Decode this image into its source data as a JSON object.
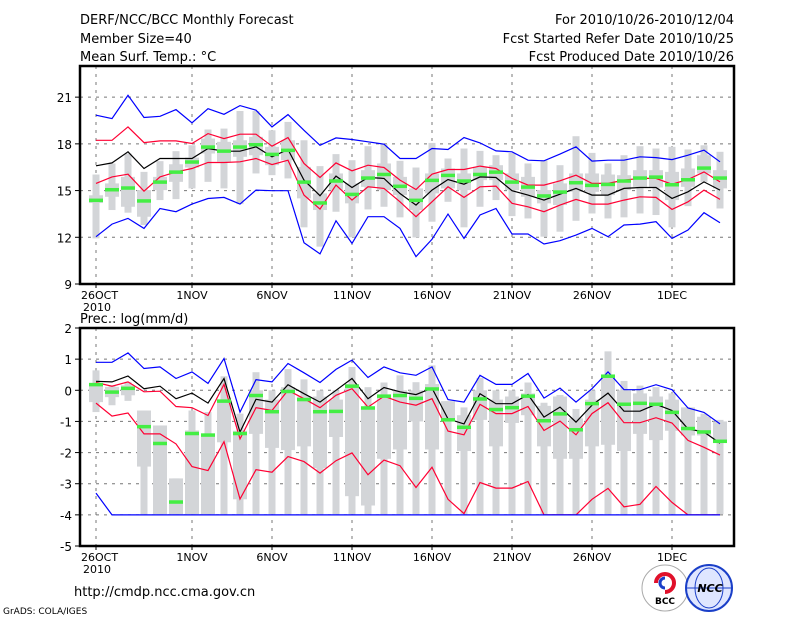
{
  "header": {
    "title": "DERF/NCC/BCC Monthly Forecast",
    "member_size": "Member Size=40",
    "variable": "Mean Surf. Temp.: °C",
    "period": "For 2010/10/26-2010/12/04",
    "start_date": "Fcst Started Refer Date 2010/10/25",
    "produced_date": "Fcst Produced Date 2010/10/26"
  },
  "footer": {
    "url": "http://cmdp.ncc.cma.gov.cn",
    "credit": "GrADS: COLA/IGES",
    "logo_bcc": "BCC",
    "logo_ncc": "NCC"
  },
  "colors": {
    "outer": "#0000ff",
    "inner": "#ff0033",
    "mean": "#000000",
    "marker": "#44ee44",
    "box": "#d3d5d8",
    "grid": "#777777"
  },
  "chart_data": [
    {
      "type": "box-line",
      "title": "Mean Surf. Temp.: °C",
      "ylabel": "°C",
      "ylim": [
        9,
        23
      ],
      "yticks": [
        9,
        12,
        15,
        18,
        21
      ],
      "xlim": [
        -1,
        39.875
      ],
      "xticks": [
        {
          "day": 0,
          "label": "26OCT"
        },
        {
          "day": 6,
          "label": "1NOV"
        },
        {
          "day": 11,
          "label": "6NOV"
        },
        {
          "day": 16,
          "label": "11NOV"
        },
        {
          "day": 21,
          "label": "16NOV"
        },
        {
          "day": 26,
          "label": "21NOV"
        },
        {
          "day": 31,
          "label": "26NOV"
        },
        {
          "day": 36,
          "label": "1DEC"
        }
      ],
      "year_label": "2010",
      "grid": true,
      "series": [
        {
          "name": "upper-outer",
          "color": "outer",
          "values": [
            19.84,
            19.62,
            21.12,
            19.69,
            19.77,
            20.2,
            19.35,
            20.26,
            19.9,
            20.46,
            20.16,
            19.09,
            19.88,
            18.87,
            17.91,
            18.38,
            18.28,
            18.13,
            17.98,
            17.06,
            17.06,
            17.7,
            17.64,
            18.41,
            18.06,
            17.55,
            17.49,
            16.95,
            16.91,
            17.34,
            17.81,
            16.89,
            16.95,
            16.95,
            17.17,
            17.12,
            16.99,
            17.27,
            17.59,
            16.85
          ]
        },
        {
          "name": "upper-inner",
          "color": "inner",
          "values": [
            18.23,
            18.23,
            19.09,
            18.08,
            18.19,
            18.19,
            18.02,
            18.66,
            18.34,
            18.62,
            18.62,
            17.85,
            18.4,
            16.74,
            15.84,
            16.78,
            16.27,
            16.63,
            16.48,
            15.67,
            15.07,
            16.05,
            16.35,
            16.35,
            16.57,
            16.42,
            15.78,
            15.35,
            15.35,
            15.63,
            15.99,
            15.46,
            15.46,
            15.67,
            15.78,
            15.78,
            15.41,
            15.71,
            16.2,
            15.56
          ]
        },
        {
          "name": "ensemble-mean",
          "color": "mean",
          "values": [
            16.59,
            16.78,
            17.49,
            16.42,
            17.06,
            17.06,
            17.06,
            17.7,
            17.53,
            17.53,
            17.81,
            17.17,
            17.64,
            15.67,
            14.67,
            15.93,
            15.2,
            15.84,
            15.78,
            14.81,
            14.07,
            15.03,
            15.71,
            15.41,
            15.88,
            15.84,
            14.99,
            14.71,
            14.39,
            14.77,
            15.14,
            14.71,
            14.71,
            15.14,
            15.2,
            15.2,
            14.5,
            14.92,
            15.56,
            15.03
          ]
        },
        {
          "name": "lower-inner",
          "color": "inner",
          "values": [
            15.46,
            15.88,
            16.05,
            14.96,
            15.88,
            16.2,
            16.42,
            16.8,
            16.8,
            16.85,
            17.06,
            16.67,
            16.95,
            14.71,
            13.81,
            15.35,
            14.39,
            15.24,
            15.14,
            14.28,
            13.32,
            14.28,
            15.24,
            14.56,
            15.24,
            15.29,
            14.18,
            13.96,
            13.64,
            14.07,
            14.43,
            14.13,
            14.13,
            14.39,
            14.6,
            14.56,
            13.79,
            14.28,
            15.03,
            14.43
          ]
        },
        {
          "name": "lower-outer",
          "color": "outer",
          "values": [
            12.04,
            12.85,
            13.21,
            12.57,
            13.85,
            13.64,
            14.13,
            14.49,
            14.56,
            14.13,
            15.03,
            14.99,
            14.99,
            11.65,
            10.93,
            13.06,
            11.61,
            13.32,
            13.32,
            12.57,
            10.76,
            11.87,
            13.49,
            11.93,
            13.43,
            13.85,
            12.21,
            12.21,
            11.57,
            11.78,
            12.14,
            12.57,
            12.04,
            12.79,
            12.85,
            13.0,
            11.93,
            12.47,
            13.58,
            12.93
          ]
        }
      ],
      "markers": [
        14.39,
        15.07,
        15.18,
        14.35,
        15.56,
        16.2,
        16.85,
        17.81,
        17.55,
        17.81,
        17.96,
        17.34,
        17.6,
        15.56,
        14.22,
        15.63,
        14.77,
        15.82,
        16.05,
        15.29,
        14.39,
        15.67,
        15.99,
        15.63,
        16.05,
        16.2,
        15.56,
        15.24,
        14.67,
        14.92,
        15.52,
        15.35,
        15.41,
        15.63,
        15.82,
        15.88,
        15.39,
        15.71,
        16.46,
        15.82
      ],
      "boxes": [
        [
          16.03,
          11.93,
          14.7,
          14.2
        ],
        [
          16.74,
          13.75,
          15.46,
          14.6
        ],
        [
          17.38,
          13.58,
          15.88,
          13.96
        ],
        [
          16.2,
          12.79,
          15.03,
          13.32
        ],
        [
          16.89,
          14.39,
          15.88,
          15.03
        ],
        [
          17.53,
          14.45,
          16.69,
          15.56
        ],
        [
          17.91,
          15.14,
          17.12,
          16.48
        ],
        [
          18.92,
          15.56,
          18.34,
          17.38
        ],
        [
          18.98,
          15.14,
          18.13,
          16.85
        ],
        [
          20.11,
          14.13,
          18.23,
          17.17
        ],
        [
          20.11,
          16.1,
          18.45,
          17.27
        ],
        [
          18.87,
          15.99,
          17.81,
          16.63
        ],
        [
          19.41,
          15.78,
          18.23,
          16.95
        ],
        [
          18.23,
          12.64,
          16.52,
          14.5
        ],
        [
          16.57,
          11.4,
          14.82,
          13.75
        ],
        [
          17.34,
          13.64,
          16.1,
          15.03
        ],
        [
          16.95,
          12.0,
          15.46,
          14.18
        ],
        [
          17.85,
          13.79,
          16.31,
          15.24
        ],
        [
          17.98,
          13.96,
          16.74,
          15.03
        ],
        [
          16.91,
          13.28,
          15.88,
          14.71
        ],
        [
          16.48,
          11.99,
          15.14,
          13.75
        ],
        [
          18.06,
          13.0,
          16.1,
          14.82
        ],
        [
          17.06,
          14.28,
          16.42,
          15.14
        ],
        [
          17.7,
          12.64,
          16.1,
          15.03
        ],
        [
          17.55,
          13.96,
          16.52,
          15.67
        ],
        [
          17.27,
          14.39,
          16.63,
          15.67
        ],
        [
          17.42,
          13.36,
          16.1,
          15.03
        ],
        [
          16.74,
          13.21,
          15.88,
          14.6
        ],
        [
          16.95,
          12.04,
          15.03,
          14.18
        ],
        [
          16.63,
          12.36,
          15.46,
          14.07
        ],
        [
          18.49,
          13.06,
          16.1,
          14.92
        ],
        [
          17.42,
          13.53,
          16.1,
          14.92
        ],
        [
          16.74,
          13.21,
          16.03,
          14.71
        ],
        [
          17.27,
          13.28,
          15.99,
          15.03
        ],
        [
          17.85,
          13.53,
          16.31,
          15.24
        ],
        [
          17.7,
          13.43,
          16.31,
          15.2
        ],
        [
          17.81,
          12.64,
          16.2,
          14.39
        ],
        [
          17.64,
          14.0,
          16.42,
          15.24
        ],
        [
          17.91,
          15.56,
          17.27,
          16.1
        ],
        [
          17.49,
          13.85,
          16.31,
          15.14
        ]
      ]
    },
    {
      "type": "box-line",
      "title": "Prec.: log(mm/d)",
      "ylabel": "log(mm/d)",
      "ylim": [
        -5,
        2
      ],
      "yticks": [
        -5,
        -4,
        -3,
        -2,
        -1,
        0,
        1,
        2
      ],
      "xlim": [
        -1,
        39.875
      ],
      "xticks": [
        {
          "day": 0,
          "label": "26OCT"
        },
        {
          "day": 6,
          "label": "1NOV"
        },
        {
          "day": 11,
          "label": "6NOV"
        },
        {
          "day": 16,
          "label": "11NOV"
        },
        {
          "day": 21,
          "label": "16NOV"
        },
        {
          "day": 26,
          "label": "21NOV"
        },
        {
          "day": 31,
          "label": "26NOV"
        },
        {
          "day": 36,
          "label": "1DEC"
        }
      ],
      "year_label": "2010",
      "grid": true,
      "series": [
        {
          "name": "upper-outer",
          "color": "outer",
          "values": [
            0.9,
            0.9,
            1.2,
            0.7,
            0.75,
            0.38,
            0.59,
            0.22,
            1.02,
            -0.7,
            0.34,
            0.27,
            0.86,
            0.56,
            0.25,
            0.67,
            0.97,
            0.41,
            0.75,
            0.56,
            0.48,
            0.75,
            -0.3,
            -0.38,
            0.48,
            0.19,
            0.19,
            0.54,
            -0.25,
            0.07,
            -0.38,
            0.05,
            0.59,
            0.02,
            0.02,
            0.18,
            0.02,
            -0.57,
            -0.71,
            -1.08
          ]
        },
        {
          "name": "upper-inner",
          "color": "inner",
          "values": [
            0.25,
            0.13,
            0.27,
            -0.05,
            -0.03,
            -0.52,
            -0.56,
            -0.81,
            0.19,
            -1.56,
            -0.56,
            -0.65,
            0.0,
            -0.27,
            -0.56,
            -0.16,
            0.05,
            -0.54,
            -0.19,
            -0.38,
            -0.48,
            -0.27,
            -1.31,
            -1.43,
            -0.45,
            -0.75,
            -0.75,
            -0.52,
            -1.29,
            -0.99,
            -1.43,
            -0.75,
            -0.4,
            -1.04,
            -1.04,
            -0.88,
            -1.05,
            -1.61,
            -1.83,
            -2.08
          ]
        },
        {
          "name": "ensemble-mean",
          "color": "mean",
          "values": [
            0.29,
            0.27,
            0.46,
            0.05,
            0.13,
            -0.27,
            -0.09,
            -0.41,
            0.38,
            -1.34,
            -0.29,
            -0.38,
            0.18,
            -0.11,
            -0.38,
            0.0,
            0.38,
            -0.27,
            0.09,
            -0.05,
            -0.14,
            0.07,
            -0.92,
            -1.08,
            -0.11,
            -0.43,
            -0.43,
            -0.14,
            -0.86,
            -0.54,
            -1.02,
            -0.48,
            -0.09,
            -0.67,
            -0.67,
            -0.45,
            -0.65,
            -1.24,
            -1.34,
            -1.7
          ]
        },
        {
          "name": "lower-inner",
          "color": "inner",
          "values": [
            -0.41,
            -0.83,
            -0.73,
            -1.4,
            -1.4,
            -1.72,
            -2.45,
            -2.58,
            -1.65,
            -3.49,
            -2.55,
            -2.63,
            -2.13,
            -2.29,
            -2.66,
            -2.26,
            -2.01,
            -2.71,
            -2.24,
            -2.42,
            -3.12,
            -2.47,
            -3.5,
            -3.96,
            -2.96,
            -3.14,
            -3.14,
            -2.93,
            -4,
            -4,
            -4,
            -3.5,
            -3.15,
            -3.74,
            -3.66,
            -3.09,
            -3.6,
            -4,
            -4,
            -4
          ]
        },
        {
          "name": "lower-outer",
          "color": "outer",
          "values": [
            -3.3,
            -4,
            -4,
            -4,
            -4,
            -4,
            -4,
            -4,
            -4,
            -4,
            -4,
            -4,
            -4,
            -4,
            -4,
            -4,
            -4,
            -4,
            -4,
            -4,
            -4,
            -4,
            -4,
            -4,
            -4,
            -4,
            -4,
            -4,
            -4,
            -4,
            -4,
            -4,
            -4,
            -4,
            -4,
            -4,
            -4,
            -4,
            -4,
            -4
          ]
        }
      ],
      "markers": [
        0.19,
        -0.05,
        0.07,
        -1.16,
        -1.7,
        -3.58,
        -1.38,
        -1.43,
        -0.34,
        -1.38,
        -0.16,
        -0.68,
        -0.03,
        -0.29,
        -0.68,
        -0.67,
        0.14,
        -0.56,
        -0.18,
        -0.16,
        -0.25,
        0.05,
        -0.94,
        -1.18,
        -0.27,
        -0.61,
        -0.55,
        -0.18,
        -0.97,
        -0.75,
        -1.26,
        -0.42,
        0.46,
        -0.44,
        -0.41,
        -0.44,
        -0.7,
        -1.22,
        -1.33,
        -1.63
      ],
      "boxes": [
        [
          0.64,
          -0.7,
          0.21,
          -0.38
        ],
        [
          0.16,
          -0.48,
          0.11,
          -0.22
        ],
        [
          0.27,
          -0.34,
          0.16,
          -0.16
        ],
        [
          -0.65,
          -3.98,
          -0.65,
          -2.45
        ],
        [
          -1.13,
          -3.98,
          -1.13,
          -3.98
        ],
        [
          -2.83,
          -3.98,
          -2.83,
          -3.98
        ],
        [
          -0.65,
          -3.98,
          -1.29,
          -3.98
        ],
        [
          -0.7,
          -3.98,
          -1.4,
          -3.98
        ],
        [
          0.45,
          -3.98,
          -0.37,
          -1.67
        ],
        [
          -0.75,
          -3.98,
          -1.3,
          -3.5
        ],
        [
          0.58,
          -3.98,
          0.0,
          -1.4
        ],
        [
          0.0,
          -3.98,
          -0.3,
          -1.85
        ],
        [
          0.68,
          -3.98,
          0.1,
          -1.92
        ],
        [
          0.35,
          -3.98,
          -0.2,
          -1.8
        ],
        [
          0.0,
          -3.98,
          -0.2,
          -2.5
        ],
        [
          0.0,
          -3.98,
          -0.3,
          -1.5
        ],
        [
          0.75,
          -3.98,
          0.2,
          -3.4
        ],
        [
          0.1,
          -3.98,
          -0.6,
          -3.7
        ],
        [
          0.25,
          -3.98,
          -0.15,
          -2.2
        ],
        [
          0.48,
          -3.98,
          0.0,
          -1.9
        ],
        [
          0.26,
          -3.98,
          0.0,
          -1.0
        ],
        [
          0.8,
          -3.98,
          0.2,
          -1.9
        ],
        [
          -0.35,
          -3.98,
          -0.35,
          -1.0
        ],
        [
          -0.55,
          -3.98,
          -0.8,
          -1.95
        ],
        [
          0.4,
          -3.98,
          0.0,
          -0.95
        ],
        [
          0.0,
          -3.98,
          -0.3,
          -1.8
        ],
        [
          0.0,
          -3.98,
          -0.2,
          -1.05
        ],
        [
          0.25,
          -3.98,
          -0.1,
          -0.8
        ],
        [
          -0.4,
          -3.98,
          -0.5,
          -1.8
        ],
        [
          -0.15,
          -3.98,
          -0.2,
          -2.2
        ],
        [
          -0.6,
          -3.98,
          -0.9,
          -2.2
        ],
        [
          0.0,
          -3.98,
          -0.3,
          -1.8
        ],
        [
          1.25,
          -3.98,
          0.5,
          -1.75
        ],
        [
          0.3,
          -3.98,
          0.0,
          -1.95
        ],
        [
          0.15,
          -3.98,
          -0.1,
          -1.4
        ],
        [
          0.1,
          -3.98,
          -0.2,
          -1.6
        ],
        [
          -0.1,
          -3.98,
          -0.3,
          -1.3
        ],
        [
          -0.55,
          -3.98,
          -0.55,
          -1.45
        ],
        [
          -0.75,
          -3.98,
          -0.85,
          -1.45
        ],
        [
          -0.95,
          -3.98,
          -1.0,
          -1.6
        ]
      ]
    }
  ]
}
